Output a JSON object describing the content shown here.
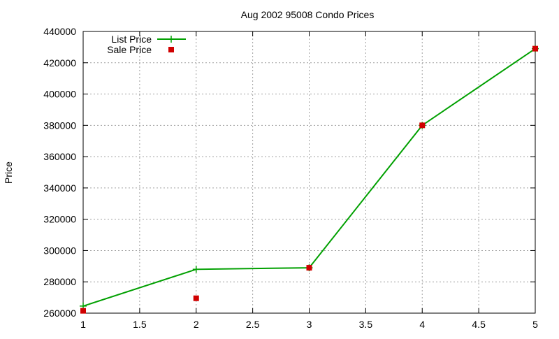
{
  "chart_data": {
    "type": "line",
    "title": "Aug 2002 95008 Condo Prices",
    "xlabel": "",
    "ylabel": "Price",
    "xlim": [
      1,
      5
    ],
    "ylim": [
      260000,
      440000
    ],
    "grid": true,
    "legend_position": "top-left",
    "x_ticks": [
      "1",
      "1.5",
      "2",
      "2.5",
      "3",
      "3.5",
      "4",
      "4.5",
      "5"
    ],
    "y_ticks": [
      "260000",
      "280000",
      "300000",
      "320000",
      "340000",
      "360000",
      "380000",
      "400000",
      "420000",
      "440000"
    ],
    "x": [
      1,
      2,
      3,
      4,
      5
    ],
    "series": [
      {
        "name": "List Price",
        "style": "linespoints",
        "color": "#00a000",
        "values": [
          264500,
          288000,
          289000,
          380000,
          429000
        ]
      },
      {
        "name": "Sale Price",
        "style": "points",
        "color": "#d00000",
        "values": [
          261500,
          269500,
          289000,
          380000,
          429000
        ]
      }
    ]
  }
}
